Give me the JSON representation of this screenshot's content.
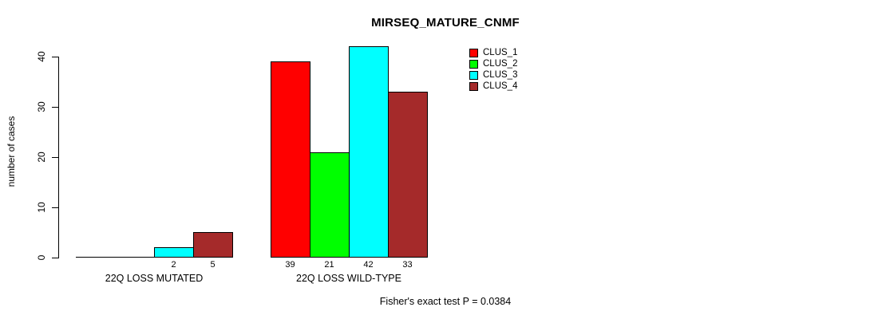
{
  "chart_data": {
    "type": "bar",
    "title": "MIRSEQ_MATURE_CNMF",
    "ylabel": "number of cases",
    "xlabel": "",
    "footnote": "Fisher's exact test P = 0.0384",
    "yticks": [
      0,
      10,
      20,
      30,
      40
    ],
    "ylim": [
      0,
      42
    ],
    "grid": false,
    "legend_position": "top-right",
    "bar_value_labels": true,
    "series": [
      {
        "name": "CLUS_1",
        "color": "#FF0000"
      },
      {
        "name": "CLUS_2",
        "color": "#00FF00"
      },
      {
        "name": "CLUS_3",
        "color": "#00FFFF"
      },
      {
        "name": "CLUS_4",
        "color": "#A52A2A"
      }
    ],
    "groups": [
      {
        "label": "22Q LOSS MUTATED",
        "values": [
          0,
          0,
          2,
          5
        ]
      },
      {
        "label": "22Q LOSS WILD-TYPE",
        "values": [
          39,
          21,
          42,
          33
        ]
      }
    ]
  }
}
